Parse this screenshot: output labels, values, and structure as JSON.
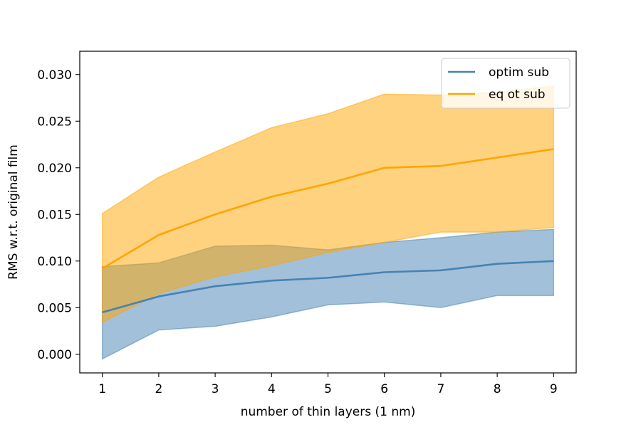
{
  "chart_data": {
    "type": "line",
    "title": "",
    "xlabel": "number of thin layers (1 nm)",
    "ylabel": "RMS w.r.t. original film",
    "x": [
      1,
      2,
      3,
      4,
      5,
      6,
      7,
      8,
      9
    ],
    "xlim": [
      0.6,
      9.4
    ],
    "ylim": [
      -0.002,
      0.0325
    ],
    "xticks": [
      1,
      2,
      3,
      4,
      5,
      6,
      7,
      8,
      9
    ],
    "yticks": [
      0.0,
      0.005,
      0.01,
      0.015,
      0.02,
      0.025,
      0.03
    ],
    "ytick_labels": [
      "0.000",
      "0.005",
      "0.010",
      "0.015",
      "0.020",
      "0.025",
      "0.030"
    ],
    "grid": false,
    "legend_position": "top-right",
    "series": [
      {
        "name": "optim sub",
        "color": "#4682b4",
        "fill_color": "#4682b4",
        "values": [
          0.0045,
          0.0062,
          0.0073,
          0.0079,
          0.0082,
          0.0088,
          0.009,
          0.0097,
          0.01
        ],
        "lower": [
          -0.0005,
          0.0026,
          0.003,
          0.004,
          0.0053,
          0.0056,
          0.005,
          0.0063,
          0.0063
        ],
        "upper": [
          0.0094,
          0.0098,
          0.0116,
          0.0117,
          0.0112,
          0.012,
          0.0125,
          0.0131,
          0.0134
        ]
      },
      {
        "name": "eq ot sub",
        "color": "#ffa500",
        "fill_color": "#ffa500",
        "values": [
          0.0092,
          0.0128,
          0.015,
          0.0169,
          0.0183,
          0.02,
          0.0202,
          0.0211,
          0.022
        ],
        "lower": [
          0.0034,
          0.0065,
          0.0083,
          0.0095,
          0.0109,
          0.012,
          0.0131,
          0.0131,
          0.0136
        ],
        "upper": [
          0.0151,
          0.019,
          0.0217,
          0.0243,
          0.0258,
          0.0279,
          0.0278,
          0.0281,
          0.0288
        ]
      }
    ]
  }
}
